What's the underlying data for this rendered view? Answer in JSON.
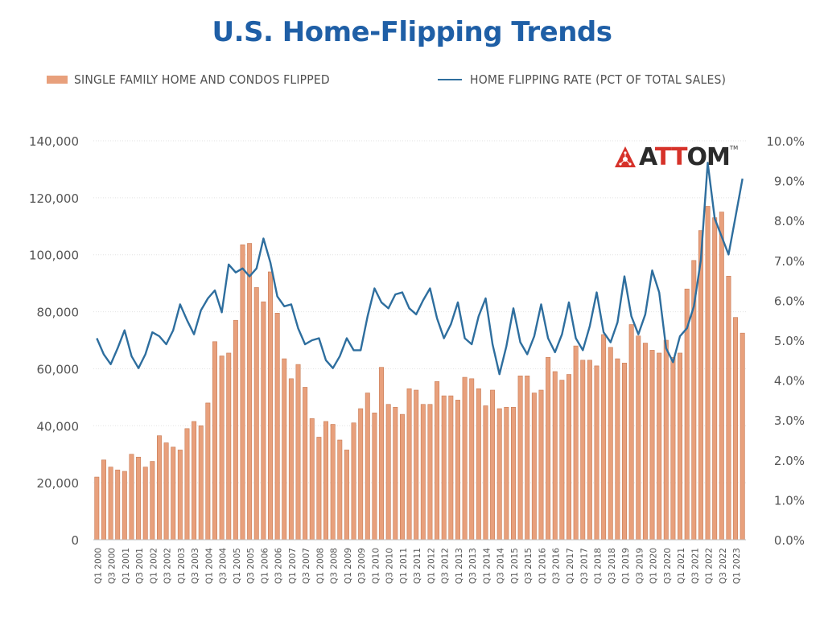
{
  "title": "U.S. Home-Flipping Trends",
  "logo": {
    "text_pre": "A",
    "text_mid": "TT",
    "text_post": "OM",
    "tm": "TM"
  },
  "legend": {
    "bars": "SINGLE FAMILY HOME AND CONDOS FLIPPED",
    "line": "HOME FLIPPING RATE (PCT OF TOTAL SALES)"
  },
  "colors": {
    "bar": "#e8a07c",
    "bar_edge": "#c77a54",
    "line": "#2e6e9e",
    "title": "#1f5fa6",
    "grid": "#e2e2e2"
  },
  "chart_data": {
    "type": "bar",
    "title": "U.S. Home-Flipping Trends",
    "x_tick_labels": [
      "Q1 2000",
      "Q3 2000",
      "Q1 2001",
      "Q3 2001",
      "Q1 2002",
      "Q3 2002",
      "Q1 2003",
      "Q3 2003",
      "Q1 2004",
      "Q3 2004",
      "Q1 2005",
      "Q3 2005",
      "Q1 2006",
      "Q3 2006",
      "Q1 2007",
      "Q3 2007",
      "Q1 2008",
      "Q3 2008",
      "Q1 2009",
      "Q3 2009",
      "Q1 2010",
      "Q3 2010",
      "Q1 2011",
      "Q3 2011",
      "Q1 2012",
      "Q3 2012",
      "Q1 2013",
      "Q3 2013",
      "Q1 2014",
      "Q3 2014",
      "Q1 2015",
      "Q3 2015",
      "Q1 2016",
      "Q3 2016",
      "Q1 2017",
      "Q3 2017",
      "Q1 2018",
      "Q3 2018",
      "Q1 2019",
      "Q3 2019",
      "Q1 2020",
      "Q3 2020",
      "Q1 2021",
      "Q3 2021",
      "Q1 2022",
      "Q3 2022",
      "Q1 2023"
    ],
    "y_left": {
      "ylim": [
        0,
        140000
      ],
      "ticks": [
        "0",
        "20,000",
        "40,000",
        "60,000",
        "80,000",
        "100,000",
        "120,000",
        "140,000"
      ]
    },
    "y_right": {
      "ylim": [
        0,
        10
      ],
      "ticks": [
        "0.0%",
        "1.0%",
        "2.0%",
        "3.0%",
        "4.0%",
        "5.0%",
        "6.0%",
        "7.0%",
        "8.0%",
        "9.0%",
        "10.0%"
      ]
    },
    "grid": true,
    "legend_position": "top",
    "series": [
      {
        "name": "SINGLE FAMILY HOME AND CONDOS FLIPPED",
        "type": "bar",
        "axis": "left",
        "values": [
          22000,
          28000,
          25500,
          24500,
          24000,
          30000,
          29000,
          25500,
          27500,
          36500,
          34000,
          32500,
          31500,
          39000,
          41500,
          40000,
          48000,
          69500,
          64500,
          65500,
          77000,
          103500,
          104000,
          88500,
          83500,
          94000,
          79500,
          63500,
          56500,
          61500,
          53500,
          42500,
          36000,
          41500,
          40500,
          35000,
          31500,
          41000,
          46000,
          51500,
          44500,
          60500,
          47500,
          46500,
          44000,
          53000,
          52500,
          47500,
          47500,
          55500,
          50500,
          50500,
          49000,
          57000,
          56500,
          53000,
          47000,
          52500,
          46000,
          46500,
          46500,
          57500,
          57500,
          51500,
          52500,
          64000,
          59000,
          56000,
          58000,
          68000,
          63000,
          63000,
          61000,
          72000,
          67500,
          63500,
          62000,
          75500,
          71500,
          69000,
          66500,
          65500,
          70000,
          64000,
          65500,
          88000,
          98000,
          108500,
          117000,
          113000,
          115000,
          92500,
          78000,
          72500
        ]
      },
      {
        "name": "HOME FLIPPING RATE (PCT OF TOTAL SALES)",
        "type": "line",
        "axis": "right",
        "values": [
          5.05,
          4.65,
          4.4,
          4.8,
          5.25,
          4.6,
          4.3,
          4.65,
          5.2,
          5.1,
          4.9,
          5.25,
          5.9,
          5.5,
          5.15,
          5.75,
          6.05,
          6.25,
          5.7,
          6.9,
          6.7,
          6.8,
          6.6,
          6.8,
          7.55,
          6.95,
          6.1,
          5.85,
          5.9,
          5.3,
          4.9,
          5.0,
          5.05,
          4.5,
          4.3,
          4.6,
          5.05,
          4.75,
          4.75,
          5.6,
          6.3,
          5.95,
          5.8,
          6.15,
          6.2,
          5.8,
          5.65,
          6.0,
          6.3,
          5.55,
          5.05,
          5.4,
          5.95,
          5.05,
          4.9,
          5.6,
          6.05,
          4.9,
          4.15,
          4.85,
          5.8,
          4.95,
          4.65,
          5.1,
          5.9,
          5.05,
          4.7,
          5.15,
          5.95,
          5.05,
          4.75,
          5.35,
          6.2,
          5.2,
          4.95,
          5.45,
          6.6,
          5.6,
          5.15,
          5.65,
          6.75,
          6.2,
          4.8,
          4.45,
          5.1,
          5.3,
          5.85,
          7.0,
          9.45,
          8.05,
          7.6,
          7.15,
          8.1,
          9.05
        ]
      }
    ]
  }
}
